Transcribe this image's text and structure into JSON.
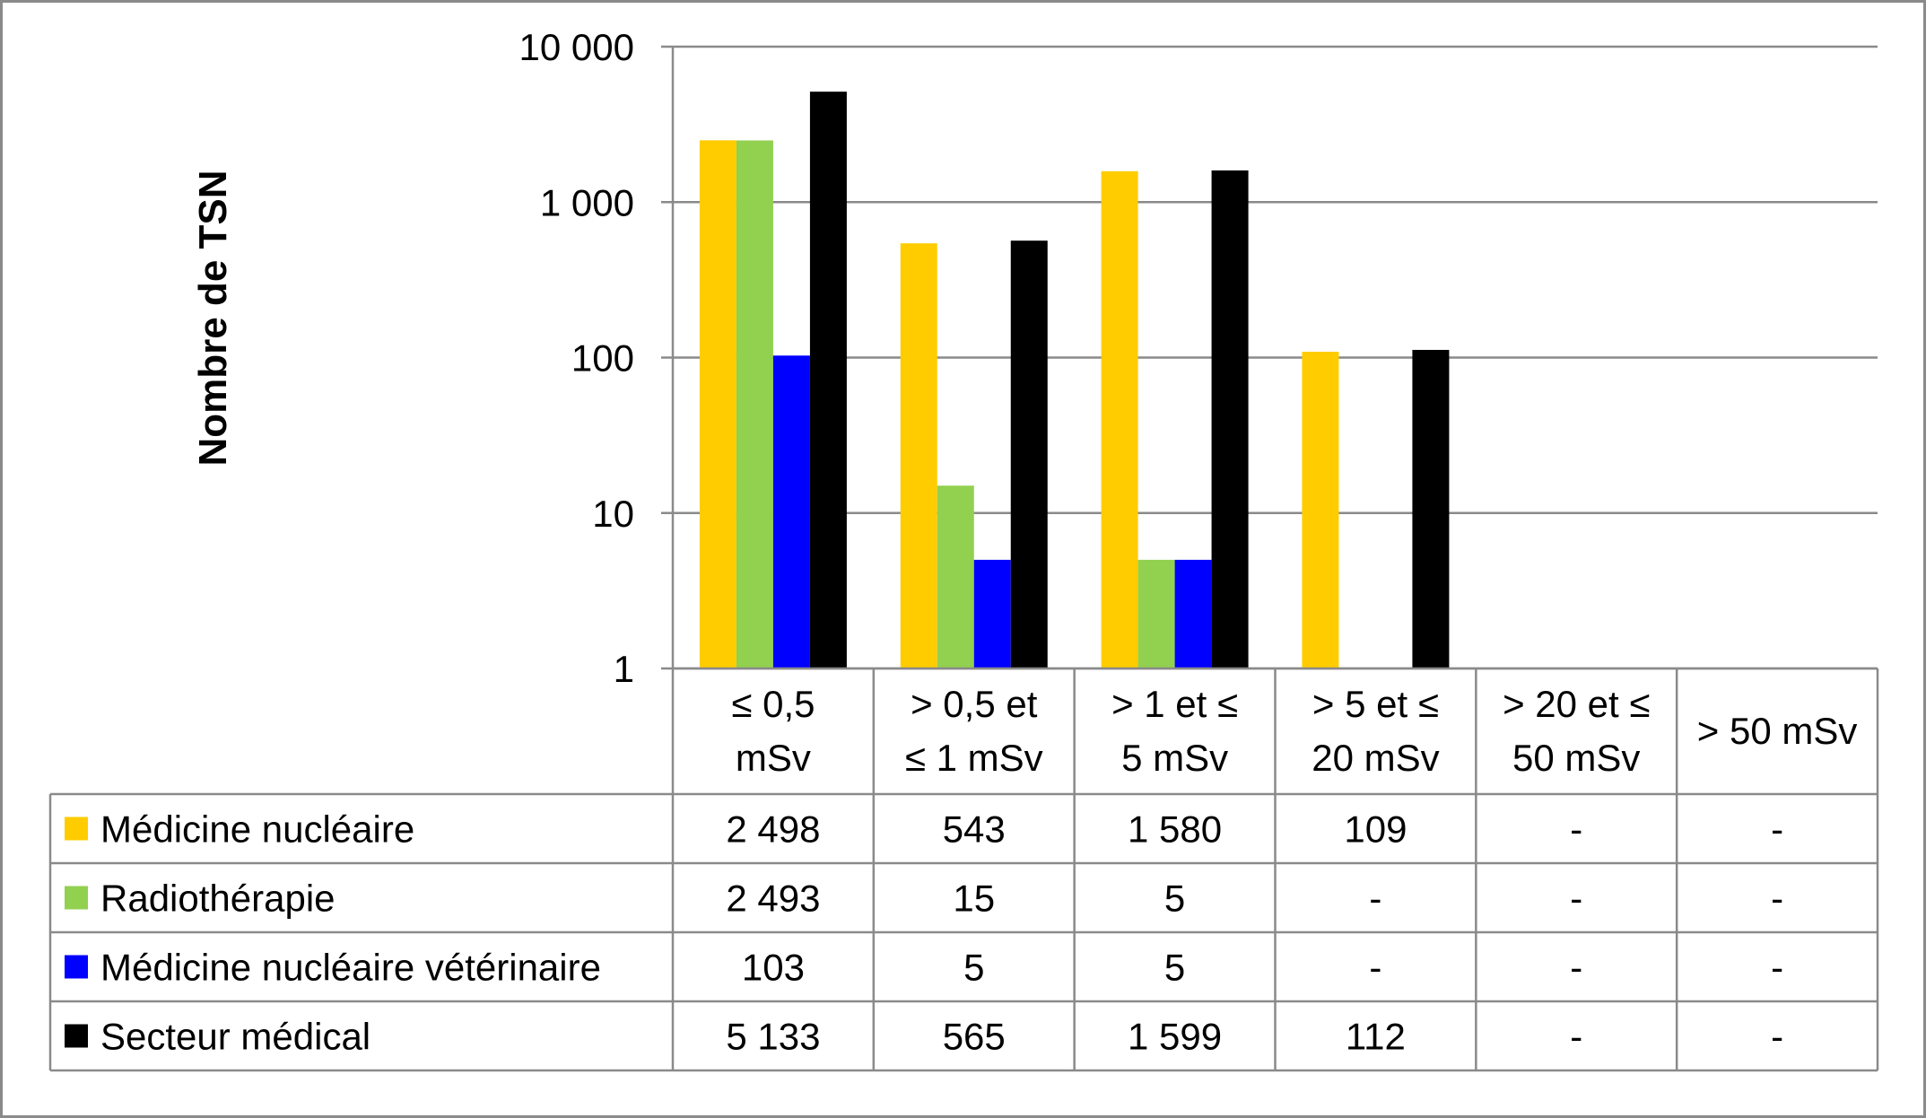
{
  "chart_data": {
    "type": "bar",
    "ylabel": "Nombre de TSN",
    "yscale": "log",
    "ylim": [
      1,
      10000
    ],
    "yticks": [
      {
        "value": 1,
        "label": "1"
      },
      {
        "value": 10,
        "label": "10"
      },
      {
        "value": 100,
        "label": "100"
      },
      {
        "value": 1000,
        "label": "1 000"
      },
      {
        "value": 10000,
        "label": "10 000"
      }
    ],
    "categories": [
      [
        "≤ 0,5",
        "mSv"
      ],
      [
        "> 0,5 et",
        "≤ 1 mSv"
      ],
      [
        "> 1 et ≤",
        "5 mSv"
      ],
      [
        "> 5 et ≤",
        "20 mSv"
      ],
      [
        "> 20 et ≤",
        "50 mSv"
      ],
      [
        "> 50 mSv"
      ]
    ],
    "series": [
      {
        "name": "Médicine nucléaire",
        "color": "#FFCC00",
        "values": [
          2498,
          543,
          1580,
          109,
          null,
          null
        ],
        "labels": [
          "2 498",
          "543",
          "1 580",
          "109",
          "-",
          "-"
        ]
      },
      {
        "name": "Radiothérapie",
        "color": "#92D050",
        "values": [
          2493,
          15,
          5,
          null,
          null,
          null
        ],
        "labels": [
          "2 493",
          "15",
          "5",
          "-",
          "-",
          "-"
        ]
      },
      {
        "name": "Médicine nucléaire vétérinaire",
        "color": "#0000FF",
        "values": [
          103,
          5,
          5,
          null,
          null,
          null
        ],
        "labels": [
          "103",
          "5",
          "5",
          "-",
          "-",
          "-"
        ]
      },
      {
        "name": "Secteur médical",
        "color": "#000000",
        "values": [
          5133,
          565,
          1599,
          112,
          null,
          null
        ],
        "labels": [
          "5 133",
          "565",
          "1 599",
          "112",
          "-",
          "-"
        ]
      }
    ],
    "grid": true,
    "legend": "data-table"
  }
}
